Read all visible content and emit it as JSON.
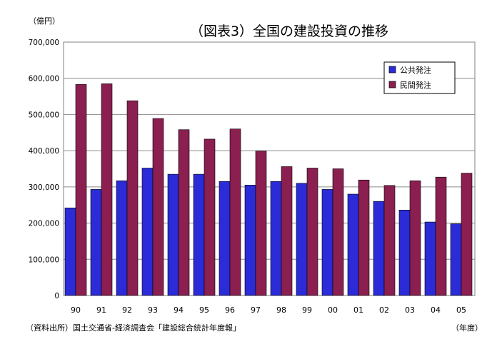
{
  "chart_data": {
    "type": "bar",
    "title": "（図表3）全国の建設投資の推移",
    "ylabel": "（億円）",
    "xlabel": "（年度）",
    "categories": [
      "90",
      "91",
      "92",
      "93",
      "94",
      "95",
      "96",
      "97",
      "98",
      "99",
      "00",
      "01",
      "02",
      "03",
      "04",
      "05"
    ],
    "series": [
      {
        "name": "公共発注",
        "color": "#2b2bd8",
        "values": [
          242000,
          293000,
          317000,
          352000,
          335000,
          335000,
          315000,
          305000,
          315000,
          310000,
          293000,
          280000,
          260000,
          236000,
          203000,
          198000
        ]
      },
      {
        "name": "民間発注",
        "color": "#8a1f50",
        "values": [
          583000,
          585000,
          538000,
          489000,
          458000,
          432000,
          460000,
          399000,
          356000,
          352000,
          350000,
          319000,
          304000,
          317000,
          327000,
          338000
        ]
      }
    ],
    "ylim": [
      0,
      700000
    ],
    "yticks": [
      "0",
      "100,000",
      "200,000",
      "300,000",
      "400,000",
      "500,000",
      "600,000",
      "700,000"
    ],
    "grid": true,
    "legend_position": "top-right",
    "source_note": "（資料出所）国土交通省-経済調査会「建設総合統計年度報」"
  }
}
